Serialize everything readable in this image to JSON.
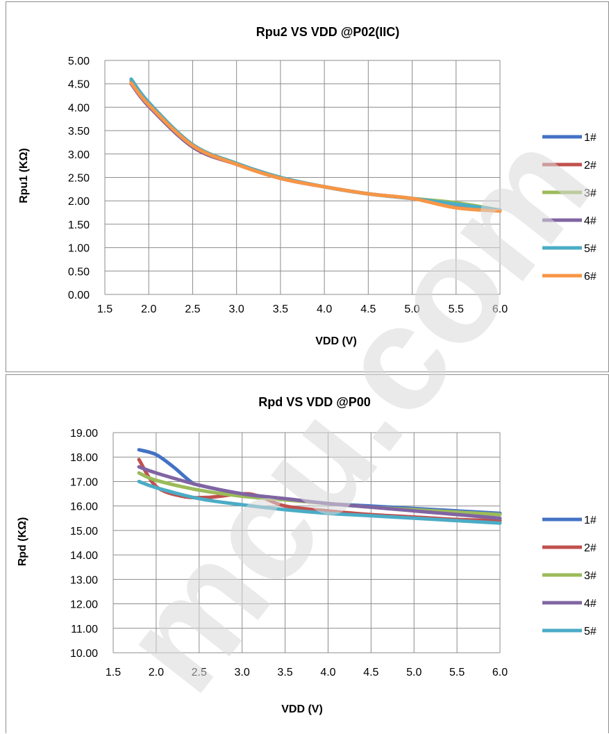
{
  "chart_data": [
    {
      "type": "line",
      "title": "Rpu2 VS VDD @P02(IIC)",
      "xlabel": "VDD  (V)",
      "ylabel": "Rpu1  (KΩ)",
      "xlim": [
        1.5,
        6.0
      ],
      "ylim": [
        0.0,
        5.0
      ],
      "xticks": [
        "1.5",
        "2.0",
        "2.5",
        "3.0",
        "3.5",
        "4.0",
        "4.5",
        "5.0",
        "5.5",
        "6.0"
      ],
      "yticks": [
        "0.00",
        "0.50",
        "1.00",
        "1.50",
        "2.00",
        "2.50",
        "3.00",
        "3.50",
        "4.00",
        "4.50",
        "5.00"
      ],
      "grid": true,
      "legend": "right",
      "series": [
        {
          "name": "1#",
          "color": "#4472c4",
          "x": [
            1.8,
            2.0,
            2.5,
            3.0,
            3.5,
            4.0,
            4.5,
            5.0,
            5.5,
            6.0
          ],
          "y": [
            4.6,
            4.1,
            3.2,
            2.8,
            2.5,
            2.3,
            2.15,
            2.05,
            1.95,
            1.8
          ]
        },
        {
          "name": "2#",
          "color": "#c0504d",
          "x": [
            1.8,
            2.0,
            2.5,
            3.0,
            3.5,
            4.0,
            4.5,
            5.0,
            5.5,
            6.0
          ],
          "y": [
            4.55,
            4.05,
            3.15,
            2.78,
            2.48,
            2.3,
            2.15,
            2.05,
            1.88,
            1.8
          ]
        },
        {
          "name": "3#",
          "color": "#9bbb59",
          "x": [
            1.8,
            2.0,
            2.5,
            3.0,
            3.5,
            4.0,
            4.5,
            5.0,
            5.5,
            6.0
          ],
          "y": [
            4.58,
            4.1,
            3.2,
            2.8,
            2.5,
            2.3,
            2.15,
            2.05,
            1.96,
            1.8
          ]
        },
        {
          "name": "4#",
          "color": "#8064a2",
          "x": [
            1.8,
            2.0,
            2.5,
            3.0,
            3.5,
            4.0,
            4.5,
            5.0,
            5.5,
            6.0
          ],
          "y": [
            4.5,
            4.02,
            3.15,
            2.78,
            2.48,
            2.3,
            2.15,
            2.05,
            1.9,
            1.8
          ]
        },
        {
          "name": "5#",
          "color": "#4bacc6",
          "x": [
            1.8,
            2.0,
            2.5,
            3.0,
            3.5,
            4.0,
            4.5,
            5.0,
            5.5,
            6.0
          ],
          "y": [
            4.6,
            4.1,
            3.2,
            2.8,
            2.5,
            2.3,
            2.15,
            2.05,
            1.93,
            1.8
          ]
        },
        {
          "name": "6#",
          "color": "#f79646",
          "x": [
            1.8,
            2.0,
            2.5,
            3.0,
            3.5,
            4.0,
            4.5,
            5.0,
            5.5,
            6.0
          ],
          "y": [
            4.52,
            4.05,
            3.18,
            2.78,
            2.48,
            2.3,
            2.15,
            2.05,
            1.85,
            1.78
          ]
        }
      ]
    },
    {
      "type": "line",
      "title": "Rpd VS VDD @P00",
      "xlabel": "VDD  (V)",
      "ylabel": "Rpd  (KΩ)",
      "xlim": [
        1.5,
        6.0
      ],
      "ylim": [
        10.0,
        19.0
      ],
      "xticks": [
        "1.5",
        "2.0",
        "2.5",
        "3.0",
        "3.5",
        "4.0",
        "4.5",
        "5.0",
        "5.5",
        "6.0"
      ],
      "yticks": [
        "10.00",
        "11.00",
        "12.00",
        "13.00",
        "14.00",
        "15.00",
        "16.00",
        "17.00",
        "18.00",
        "19.00"
      ],
      "grid": true,
      "legend": "right",
      "series": [
        {
          "name": "1#",
          "color": "#4472c4",
          "x": [
            1.8,
            2.0,
            2.2,
            2.4,
            2.5,
            3.0,
            3.5,
            4.0,
            4.5,
            5.0,
            5.5,
            6.0
          ],
          "y": [
            18.3,
            18.1,
            17.6,
            17.0,
            16.85,
            16.5,
            16.3,
            16.1,
            16.0,
            15.9,
            15.8,
            15.7
          ]
        },
        {
          "name": "2#",
          "color": "#c0504d",
          "x": [
            1.8,
            2.0,
            2.3,
            2.6,
            3.0,
            3.2,
            3.5,
            4.0,
            4.5,
            5.0,
            5.5,
            6.0
          ],
          "y": [
            17.9,
            16.8,
            16.4,
            16.35,
            16.5,
            16.4,
            16.0,
            15.8,
            15.65,
            15.55,
            15.45,
            15.4
          ]
        },
        {
          "name": "3#",
          "color": "#9bbb59",
          "x": [
            1.8,
            2.0,
            2.5,
            3.0,
            3.5,
            4.0,
            4.5,
            5.0,
            5.5,
            6.0
          ],
          "y": [
            17.35,
            17.05,
            16.65,
            16.4,
            16.25,
            16.1,
            15.95,
            15.85,
            15.75,
            15.65
          ]
        },
        {
          "name": "4#",
          "color": "#8064a2",
          "x": [
            1.8,
            2.0,
            2.5,
            3.0,
            3.5,
            4.0,
            4.5,
            5.0,
            5.5,
            6.0
          ],
          "y": [
            17.6,
            17.35,
            16.85,
            16.5,
            16.3,
            16.1,
            15.95,
            15.8,
            15.65,
            15.5
          ]
        },
        {
          "name": "5#",
          "color": "#4bacc6",
          "x": [
            1.8,
            2.0,
            2.5,
            3.0,
            3.5,
            4.0,
            4.5,
            5.0,
            5.5,
            6.0
          ],
          "y": [
            17.0,
            16.75,
            16.3,
            16.05,
            15.85,
            15.7,
            15.6,
            15.5,
            15.4,
            15.3
          ]
        }
      ]
    }
  ],
  "watermark": {
    "text": "mcu.com",
    "color": "#d9d9d9"
  }
}
